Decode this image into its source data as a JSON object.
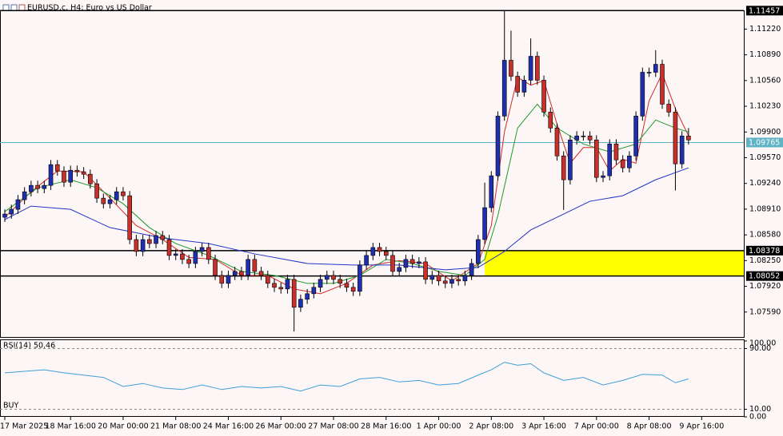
{
  "chart_data": {
    "type": "candlestick",
    "title": "EURUSD.c, H4: Euro vs US Dollar",
    "up_color": "#1f2fb0",
    "down_color": "#c8302c",
    "open": [
      1.08806,
      1.08847,
      1.08908,
      1.09031,
      1.09133,
      1.09215,
      1.09174,
      1.09215,
      1.09481,
      1.09399,
      1.09256,
      1.09409,
      1.09389,
      1.09358,
      1.09235,
      1.09051,
      1.0898,
      1.09031,
      1.09133,
      1.09082,
      1.0852,
      1.08367,
      1.0852,
      1.08469,
      1.08571,
      1.0852,
      1.08316,
      1.08336,
      1.08265,
      1.08213,
      1.08367,
      1.08418,
      1.08265,
      1.0806,
      1.07958,
      1.0806,
      1.08111,
      1.0806,
      1.08265,
      1.08111,
      1.0806,
      1.07958,
      1.07907,
      1.07886,
      1.08009,
      1.07651,
      1.07754,
      1.07825,
      1.07907,
      1.08009,
      1.0806,
      1.08009,
      1.07958,
      1.07907,
      1.07856,
      1.08193,
      1.08316,
      1.08418,
      1.08367,
      1.08316,
      1.08111,
      1.08162,
      1.08265,
      1.08213,
      1.08234,
      1.08009,
      1.0806,
      1.07989,
      1.07958,
      1.08009,
      1.07989,
      1.0806,
      1.08213,
      1.0852,
      1.08929,
      1.09338,
      1.10104,
      1.1082,
      1.10615,
      1.10411,
      1.10564,
      1.10871,
      1.10564,
      1.10155,
      1.09951,
      1.09593,
      1.09287,
      1.09798,
      1.09849,
      1.09849,
      1.09798,
      1.09317,
      1.09338,
      1.09746,
      1.09542,
      1.0944,
      1.09593,
      1.10104,
      1.10666,
      1.10666,
      1.10768,
      1.10257,
      1.10155,
      1.09491,
      1.09849
    ],
    "high": [
      1.08907,
      1.08968,
      1.09091,
      1.09193,
      1.09275,
      1.09275,
      1.09275,
      1.09541,
      1.09541,
      1.09459,
      1.09469,
      1.09469,
      1.09449,
      1.09418,
      1.09295,
      1.09111,
      1.09091,
      1.09193,
      1.09193,
      1.09142,
      1.0858,
      1.0858,
      1.0858,
      1.08631,
      1.08631,
      1.0858,
      1.08396,
      1.08396,
      1.08325,
      1.08427,
      1.08478,
      1.08478,
      1.08325,
      1.0812,
      1.0812,
      1.08171,
      1.08171,
      1.08325,
      1.08325,
      1.08171,
      1.0812,
      1.08018,
      1.07967,
      1.08069,
      1.08069,
      1.07814,
      1.07885,
      1.07967,
      1.08069,
      1.0812,
      1.0812,
      1.08069,
      1.08018,
      1.07967,
      1.08253,
      1.08376,
      1.08478,
      1.08478,
      1.08427,
      1.08376,
      1.08222,
      1.08325,
      1.08325,
      1.08294,
      1.08294,
      1.0812,
      1.0812,
      1.08049,
      1.08069,
      1.08069,
      1.0812,
      1.08273,
      1.0858,
      1.0925,
      1.09398,
      1.10164,
      1.11457,
      1.112,
      1.10675,
      1.10624,
      1.111,
      1.10931,
      1.10624,
      1.10215,
      1.10011,
      1.09653,
      1.09858,
      1.09909,
      1.09909,
      1.09909,
      1.09858,
      1.09398,
      1.09806,
      1.09806,
      1.09602,
      1.09653,
      1.10164,
      1.10726,
      1.10726,
      1.1095,
      1.10828,
      1.10317,
      1.10215,
      1.09909,
      1.0995
    ],
    "low": [
      1.08746,
      1.08787,
      1.08848,
      1.08971,
      1.09073,
      1.09114,
      1.09114,
      1.09155,
      1.09339,
      1.09196,
      1.09196,
      1.09329,
      1.09298,
      1.09175,
      1.08991,
      1.0892,
      1.0892,
      1.08971,
      1.09022,
      1.0846,
      1.08307,
      1.08307,
      1.08409,
      1.08409,
      1.0846,
      1.08256,
      1.08256,
      1.08205,
      1.08153,
      1.08153,
      1.08307,
      1.08205,
      1.08,
      1.07898,
      1.07898,
      1.08,
      1.08,
      1.08,
      1.08051,
      1.08,
      1.07898,
      1.07847,
      1.07826,
      1.07826,
      1.0734,
      1.07591,
      1.07694,
      1.07765,
      1.07847,
      1.07949,
      1.07949,
      1.07898,
      1.07847,
      1.07796,
      1.07796,
      1.08133,
      1.08256,
      1.08307,
      1.08256,
      1.08051,
      1.08051,
      1.08102,
      1.08153,
      1.08153,
      1.07949,
      1.07949,
      1.07929,
      1.07898,
      1.07898,
      1.07929,
      1.07929,
      1.08,
      1.08153,
      1.0846,
      1.08869,
      1.09278,
      1.10044,
      1.10555,
      1.10351,
      1.10351,
      1.10504,
      1.10504,
      1.10095,
      1.09891,
      1.09533,
      1.089,
      1.09227,
      1.09738,
      1.09789,
      1.09738,
      1.09257,
      1.09257,
      1.09278,
      1.09482,
      1.0938,
      1.0938,
      1.09533,
      1.10044,
      1.10606,
      1.10606,
      1.10197,
      1.10095,
      1.0915,
      1.09431,
      1.09738
    ],
    "close": [
      1.08847,
      1.08908,
      1.09031,
      1.09133,
      1.09215,
      1.09174,
      1.09215,
      1.09481,
      1.09399,
      1.09256,
      1.09409,
      1.09389,
      1.09358,
      1.09235,
      1.09051,
      1.0898,
      1.09031,
      1.09133,
      1.09082,
      1.0852,
      1.08367,
      1.0852,
      1.08469,
      1.08571,
      1.0852,
      1.08316,
      1.08336,
      1.08265,
      1.08213,
      1.08367,
      1.08418,
      1.08265,
      1.0806,
      1.07958,
      1.0806,
      1.08111,
      1.0806,
      1.08265,
      1.08111,
      1.0806,
      1.07958,
      1.07907,
      1.07886,
      1.08009,
      1.07651,
      1.07754,
      1.07825,
      1.07907,
      1.08009,
      1.0806,
      1.08009,
      1.07958,
      1.07907,
      1.07856,
      1.08193,
      1.08316,
      1.08418,
      1.08367,
      1.08316,
      1.08111,
      1.08162,
      1.08265,
      1.08213,
      1.08234,
      1.08009,
      1.0806,
      1.07989,
      1.07958,
      1.08009,
      1.07989,
      1.0806,
      1.08213,
      1.0852,
      1.08929,
      1.09338,
      1.10104,
      1.1082,
      1.10615,
      1.10411,
      1.10564,
      1.10871,
      1.10564,
      1.10155,
      1.09951,
      1.09593,
      1.09287,
      1.09798,
      1.09849,
      1.09849,
      1.09798,
      1.09317,
      1.09338,
      1.09746,
      1.09542,
      1.0944,
      1.09593,
      1.10104,
      1.10666,
      1.10666,
      1.10768,
      1.10257,
      1.10155,
      1.09491,
      1.09849,
      1.09798
    ],
    "ylim": [
      1.0727,
      1.1146
    ],
    "yticks": [
      {
        "value": 1.0759,
        "label": "1.07590"
      },
      {
        "value": 1.0792,
        "label": "1.07920"
      },
      {
        "value": 1.0825,
        "label": "1.08250"
      },
      {
        "value": 1.0858,
        "label": "1.08580"
      },
      {
        "value": 1.0891,
        "label": "1.08910"
      },
      {
        "value": 1.0924,
        "label": "1.09240"
      },
      {
        "value": 1.0957,
        "label": "1.09570"
      },
      {
        "value": 1.099,
        "label": "1.09900"
      },
      {
        "value": 1.1023,
        "label": "1.10230"
      },
      {
        "value": 1.1056,
        "label": "1.10560"
      },
      {
        "value": 1.1089,
        "label": "1.10890"
      },
      {
        "value": 1.1122,
        "label": "1.11220"
      }
    ],
    "xticks": [
      {
        "value": 0,
        "label": "17 Mar 2025"
      },
      {
        "value": 10,
        "label": "18 Mar 16:00"
      },
      {
        "value": 18,
        "label": "20 Mar 00:00"
      },
      {
        "value": 26,
        "label": "21 Mar 08:00"
      },
      {
        "value": 34,
        "label": "24 Mar 16:00"
      },
      {
        "value": 42,
        "label": "26 Mar 00:00"
      },
      {
        "value": 50,
        "label": "27 Mar 08:00"
      },
      {
        "value": 58,
        "label": "28 Mar 16:00"
      },
      {
        "value": 66,
        "label": "1 Apr 00:00"
      },
      {
        "value": 74,
        "label": "2 Apr 08:00"
      },
      {
        "value": 82,
        "label": "3 Apr 16:00"
      },
      {
        "value": 90,
        "label": "7 Apr 00:00"
      },
      {
        "value": 98,
        "label": "8 Apr 08:00"
      },
      {
        "value": 106,
        "label": "9 Apr 16:00"
      }
    ],
    "levels": [
      {
        "value": 1.11457,
        "color": "#000000"
      },
      {
        "value": 1.09765,
        "color": "#5fb3c4"
      },
      {
        "value": 1.08378,
        "color": "#000000"
      },
      {
        "value": 1.08052,
        "color": "#000000"
      }
    ],
    "zone": {
      "start": 73,
      "low": 1.08052,
      "high": 1.08378,
      "color": "#ffff00"
    },
    "series": [
      {
        "color": "#d42a2a",
        "x": [
          0,
          4,
          8,
          12,
          16,
          20,
          24,
          28,
          32,
          36,
          40,
          44,
          48,
          52,
          56,
          60,
          64,
          68,
          72,
          74,
          76,
          78,
          80,
          82,
          84,
          86,
          88,
          90,
          92,
          94,
          96,
          98,
          100,
          102,
          104
        ],
        "values": [
          1.08806,
          1.09133,
          1.09399,
          1.09389,
          1.09051,
          1.087,
          1.0852,
          1.0829,
          1.08265,
          1.0806,
          1.0806,
          1.07886,
          1.07825,
          1.07958,
          1.08193,
          1.0825,
          1.08213,
          1.07989,
          1.08213,
          1.087,
          1.099,
          1.106,
          1.105,
          1.1056,
          1.1,
          1.095,
          1.097,
          1.097,
          1.094,
          1.0955,
          1.095,
          1.103,
          1.1065,
          1.102,
          1.0985
        ]
      },
      {
        "color": "#1f9a2a",
        "x": [
          0,
          5,
          10,
          14,
          18,
          22,
          26,
          31,
          36,
          41,
          46,
          50,
          54,
          58,
          62,
          66,
          70,
          73,
          75,
          78,
          81,
          84,
          88,
          92,
          96,
          99,
          102,
          104
        ],
        "values": [
          1.08878,
          1.09184,
          1.09287,
          1.09184,
          1.0898,
          1.08673,
          1.08469,
          1.08316,
          1.08111,
          1.0806,
          1.07958,
          1.07958,
          1.0806,
          1.08265,
          1.08213,
          1.08111,
          1.0806,
          1.08265,
          1.08827,
          1.09951,
          1.10257,
          1.09951,
          1.09746,
          1.09644,
          1.09746,
          1.10053,
          1.09951,
          1.099
        ]
      },
      {
        "color": "#2433c8",
        "x": [
          0,
          4,
          10,
          16,
          24,
          31,
          38,
          46,
          53,
          60,
          67,
          72,
          76,
          80,
          85,
          89,
          94,
          99,
          104
        ],
        "values": [
          1.08776,
          1.08949,
          1.08908,
          1.08673,
          1.0854,
          1.08469,
          1.08336,
          1.08213,
          1.08193,
          1.08193,
          1.08132,
          1.08162,
          1.08367,
          1.08643,
          1.08847,
          1.09011,
          1.09082,
          1.09287,
          1.0944
        ]
      }
    ],
    "indicator": {
      "label": "RSI(14) 50.46",
      "color": "#3f9fd8",
      "ylim": [
        0,
        100
      ],
      "yticks": [
        {
          "value": 100,
          "label": "100.00"
        },
        {
          "value": 90,
          "label": "90.00"
        },
        {
          "value": 10,
          "label": "10.00"
        },
        {
          "value": 0,
          "label": "0.00"
        }
      ],
      "levels": [
        90,
        10
      ],
      "x": [
        0,
        3,
        6,
        9,
        12,
        15,
        18,
        21,
        24,
        27,
        30,
        33,
        36,
        39,
        42,
        45,
        48,
        51,
        54,
        57,
        60,
        63,
        66,
        69,
        72,
        74,
        76,
        78,
        80,
        82,
        85,
        88,
        91,
        94,
        97,
        100,
        102,
        104
      ],
      "values": [
        58,
        60,
        62,
        58,
        55,
        52,
        40,
        44,
        38,
        36,
        42,
        36,
        40,
        38,
        40,
        34,
        42,
        40,
        50,
        52,
        46,
        48,
        42,
        44,
        55,
        62,
        72,
        68,
        70,
        58,
        48,
        52,
        42,
        48,
        56,
        55,
        45,
        50
      ]
    },
    "signal": "BUY"
  }
}
